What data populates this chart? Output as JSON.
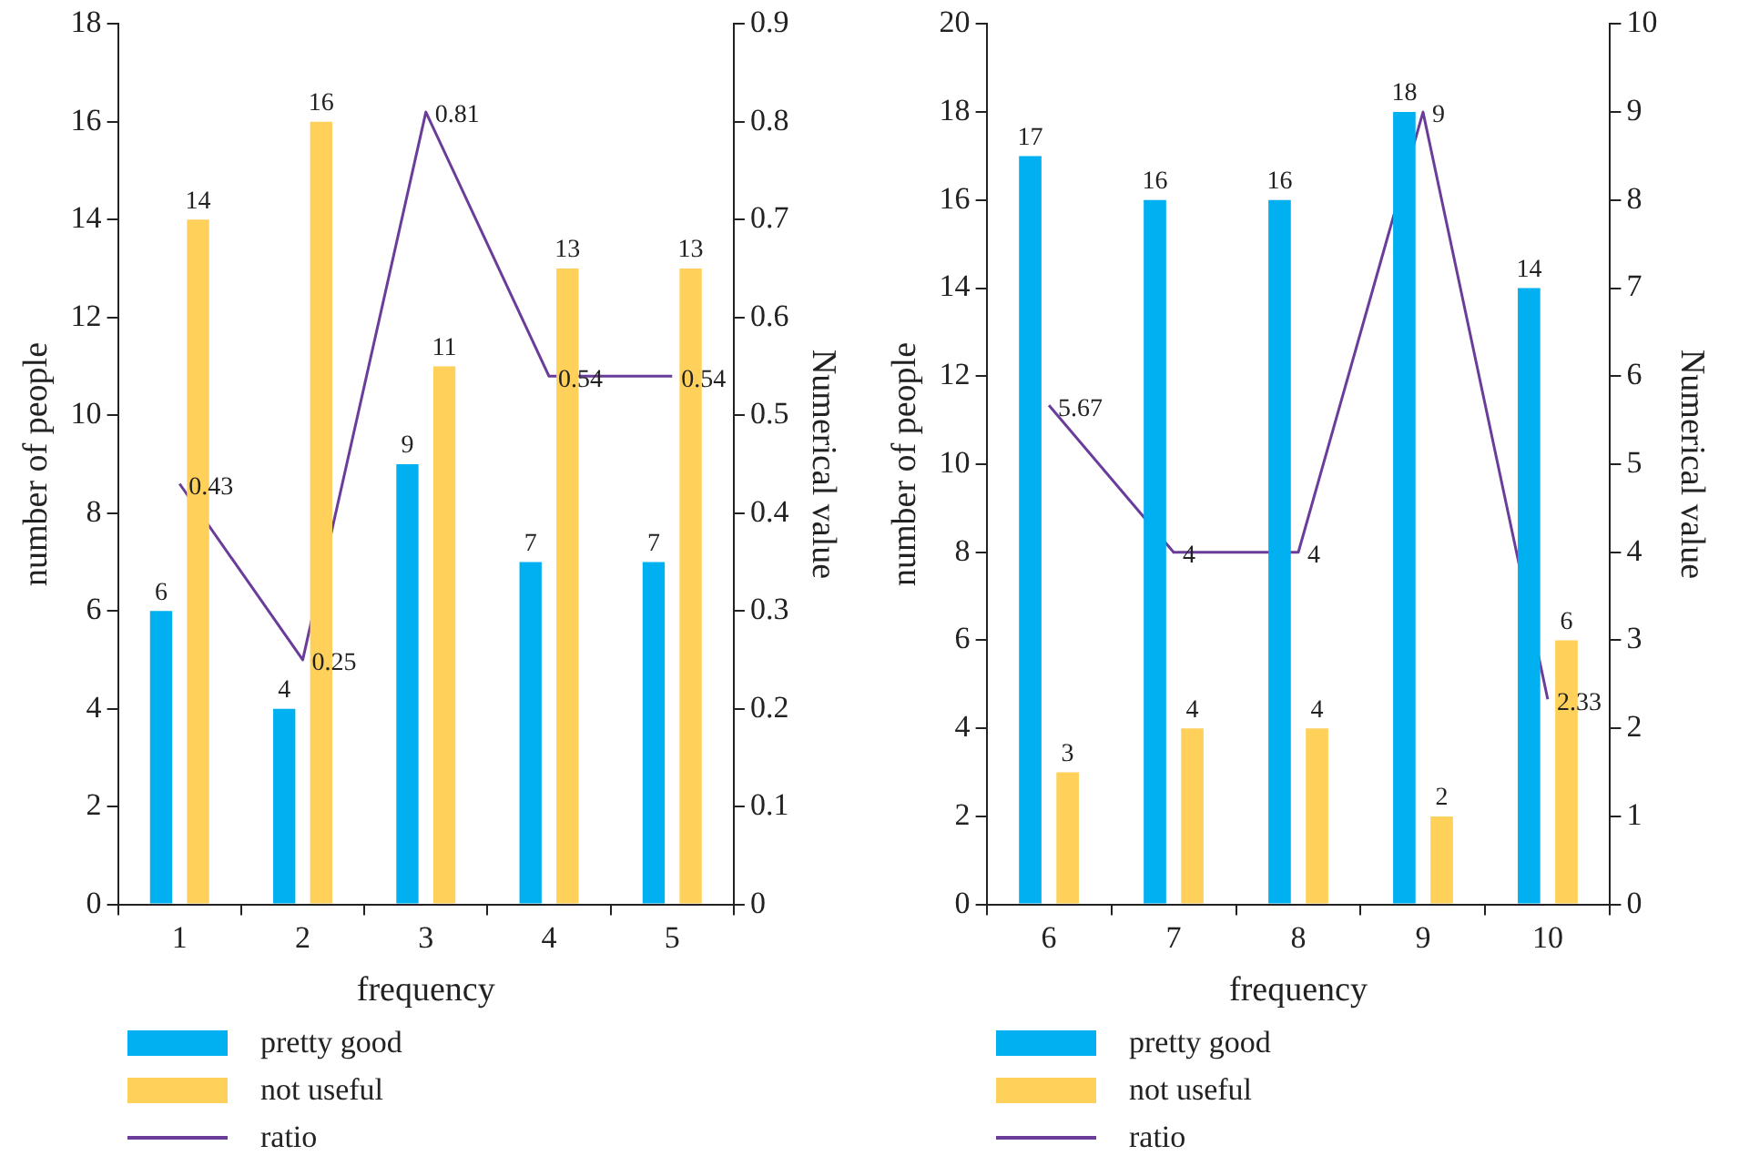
{
  "chart_data": [
    {
      "type": "bar",
      "xlabel": "frequency",
      "ylabel": "number of people",
      "y2label": "Numerical value",
      "categories": [
        "1",
        "2",
        "3",
        "4",
        "5"
      ],
      "series": [
        {
          "name": "pretty good",
          "color": "#00b0f0",
          "values": [
            6,
            4,
            9,
            7,
            7
          ]
        },
        {
          "name": "not useful",
          "color": "#ffd05a",
          "values": [
            14,
            16,
            11,
            13,
            13
          ]
        },
        {
          "name": "ratio",
          "type": "line",
          "axis": "y2",
          "color": "#6a3d9a",
          "values": [
            0.43,
            0.25,
            0.81,
            0.54,
            0.54
          ]
        }
      ],
      "ylim": [
        0,
        18
      ],
      "yticks": [
        0,
        2,
        4,
        6,
        8,
        10,
        12,
        14,
        16,
        18
      ],
      "y2lim": [
        0,
        0.9
      ],
      "y2ticks": [
        0,
        0.1,
        0.2,
        0.3,
        0.4,
        0.5,
        0.6,
        0.7,
        0.8,
        0.9
      ],
      "data_labels": true,
      "grid": false,
      "legend": "bottom",
      "marker": "none"
    },
    {
      "type": "bar",
      "xlabel": "frequency",
      "ylabel": "number of people",
      "y2label": "Numerical value",
      "categories": [
        "6",
        "7",
        "8",
        "9",
        "10"
      ],
      "series": [
        {
          "name": "pretty good",
          "color": "#00b0f0",
          "values": [
            17,
            16,
            16,
            18,
            14
          ]
        },
        {
          "name": "not useful",
          "color": "#ffd05a",
          "values": [
            3,
            4,
            4,
            2,
            6
          ]
        },
        {
          "name": "ratio",
          "type": "line",
          "axis": "y2",
          "color": "#6a3d9a",
          "values": [
            5.67,
            4,
            4,
            9,
            2.33
          ]
        }
      ],
      "ylim": [
        0,
        20
      ],
      "yticks": [
        0,
        2,
        4,
        6,
        8,
        10,
        12,
        14,
        16,
        18,
        20
      ],
      "y2lim": [
        0,
        10
      ],
      "y2ticks": [
        0,
        1,
        2,
        3,
        4,
        5,
        6,
        7,
        8,
        9,
        10
      ],
      "data_labels": true,
      "grid": false,
      "legend": "bottom",
      "marker": "none"
    }
  ]
}
